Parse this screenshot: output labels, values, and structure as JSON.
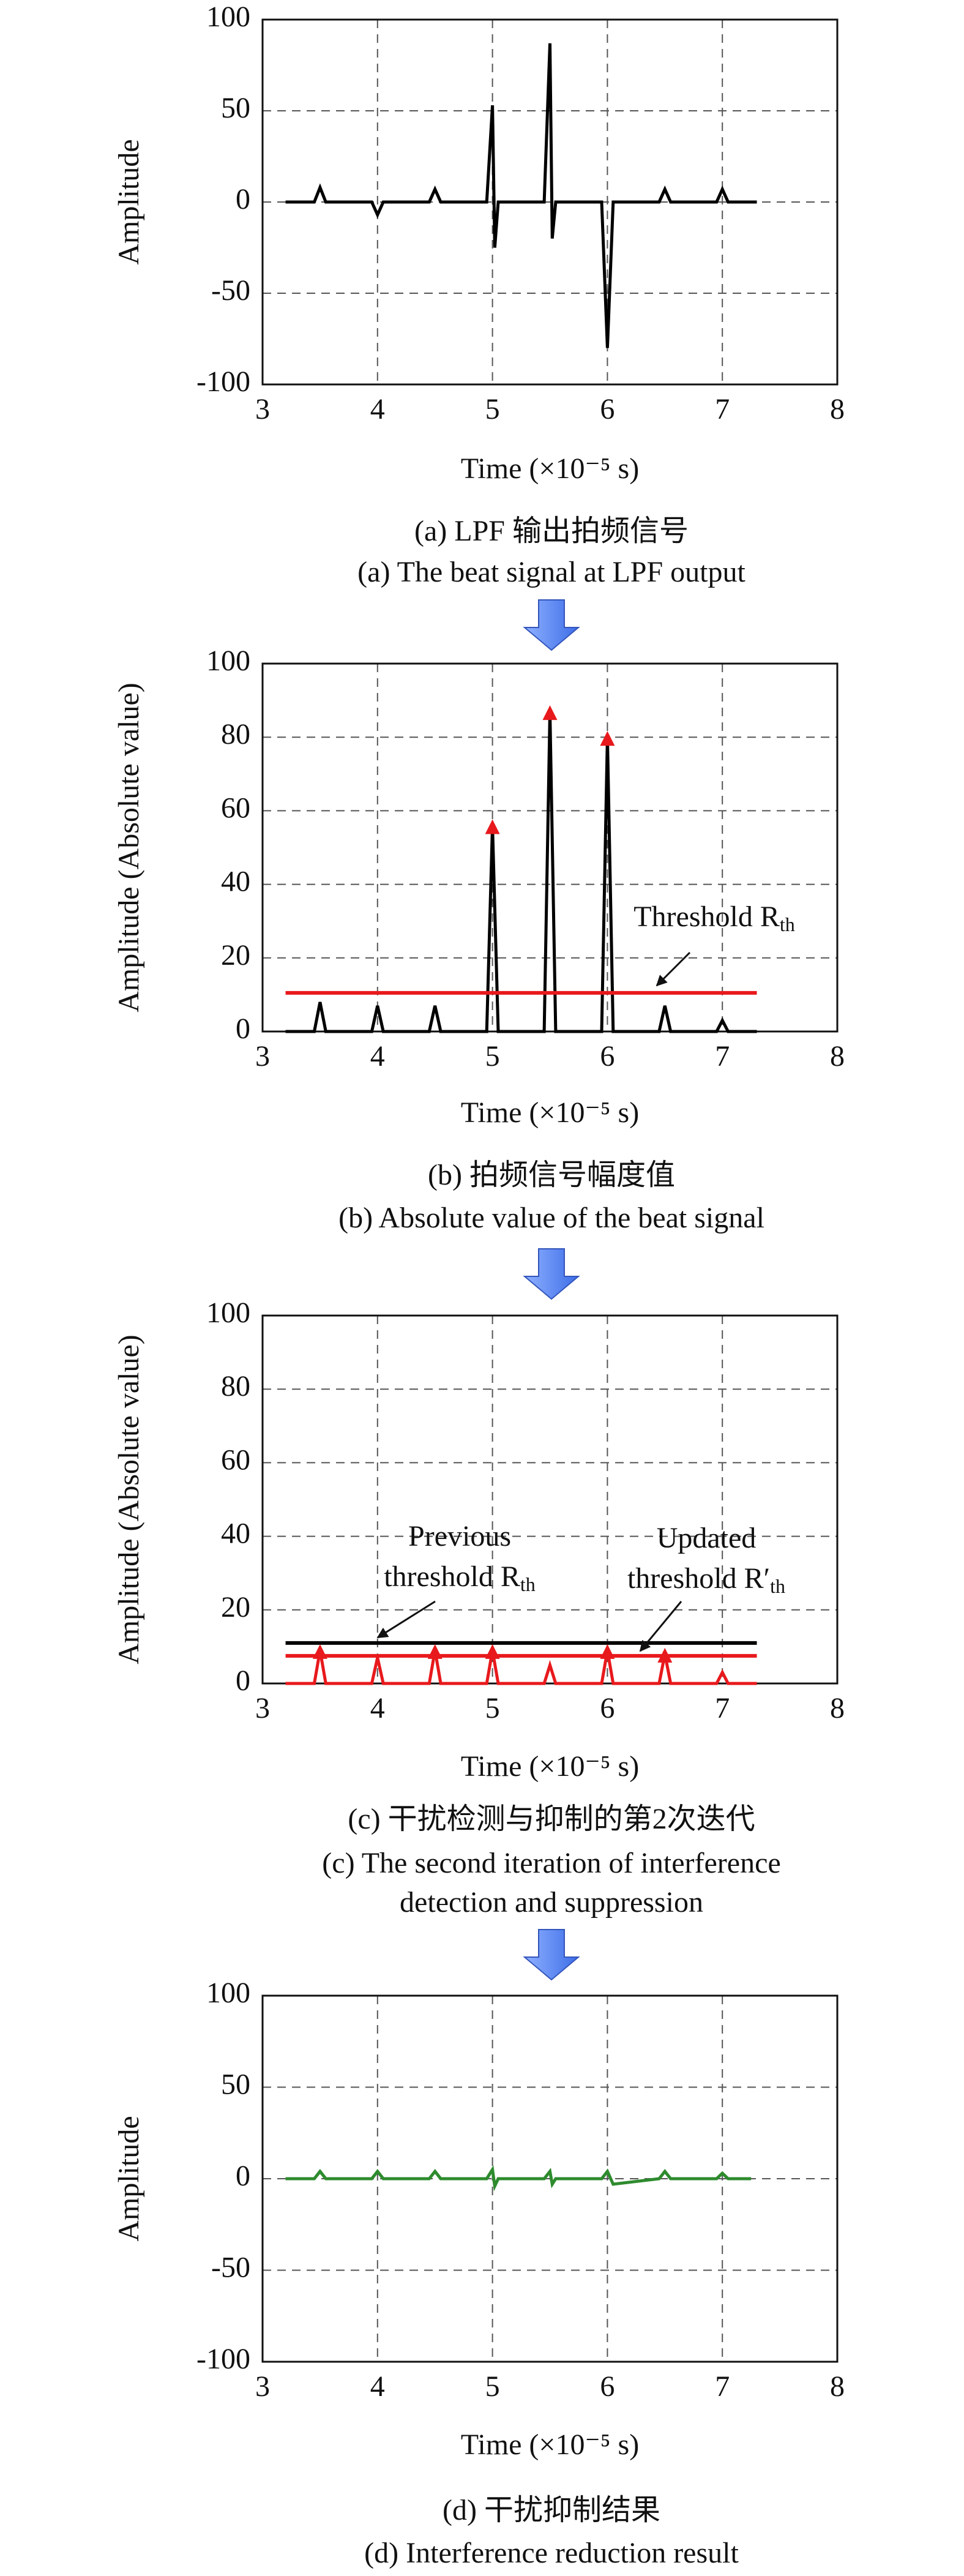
{
  "chart_data": [
    {
      "type": "line",
      "xlabel": "Time (×10⁻⁵ s)",
      "ylabel": "Amplitude",
      "xlim": [
        3,
        8
      ],
      "xticks": [
        3,
        4,
        5,
        6,
        7,
        8
      ],
      "ylim": [
        -100,
        100
      ],
      "yticks": [
        -100,
        -50,
        0,
        50,
        100
      ],
      "grid": true,
      "series": [
        {
          "color": "#000000",
          "style": "line",
          "x": [
            3.2,
            3.45,
            3.5,
            3.55,
            3.95,
            4.0,
            4.05,
            4.45,
            4.5,
            4.55,
            4.95,
            5.0,
            5.02,
            5.05,
            5.45,
            5.5,
            5.52,
            5.55,
            5.95,
            6.0,
            6.05,
            6.45,
            6.5,
            6.55,
            6.95,
            7.0,
            7.05,
            7.3
          ],
          "values": [
            0,
            0,
            8,
            0,
            0,
            -7,
            0,
            0,
            7,
            0,
            0,
            53,
            -25,
            0,
            0,
            87,
            -20,
            0,
            0,
            -80,
            0,
            0,
            7,
            0,
            0,
            7,
            0,
            0
          ]
        }
      ],
      "annotations": [],
      "caption": [
        "(a) LPF 输出拍频信号",
        "(a) The beat signal at LPF output"
      ]
    },
    {
      "type": "line",
      "xlabel": "Time (×10⁻⁵ s)",
      "ylabel": "Amplitude (Absolute value)",
      "xlim": [
        3,
        8
      ],
      "xticks": [
        3,
        4,
        5,
        6,
        7,
        8
      ],
      "ylim": [
        0,
        100
      ],
      "yticks": [
        0,
        20,
        40,
        60,
        80,
        100
      ],
      "grid": true,
      "series": [
        {
          "color": "#000000",
          "style": "line",
          "x": [
            3.2,
            3.45,
            3.5,
            3.55,
            3.95,
            4.0,
            4.05,
            4.45,
            4.5,
            4.55,
            4.95,
            5.0,
            5.05,
            5.45,
            5.5,
            5.55,
            5.95,
            6.0,
            6.05,
            6.45,
            6.5,
            6.55,
            6.95,
            7.0,
            7.05,
            7.3
          ],
          "values": [
            0,
            0,
            8,
            0,
            0,
            7,
            0,
            0,
            7,
            0,
            0,
            56,
            0,
            0,
            87,
            0,
            0,
            80,
            0,
            0,
            7,
            0,
            0,
            3,
            0,
            0
          ]
        },
        {
          "color": "#e8191c",
          "style": "line",
          "x": [
            3.2,
            7.3
          ],
          "values": [
            10.5,
            10.5
          ]
        },
        {
          "color": "#e8191c",
          "style": "markers",
          "x": [
            5.0,
            5.5,
            6.0
          ],
          "values": [
            56,
            87,
            80
          ]
        }
      ],
      "annotations": [
        {
          "lines": [
            {
              "text": "Threshold R",
              "sub": "th"
            }
          ]
        }
      ],
      "caption": [
        "(b) 拍频信号幅度值",
        "(b) Absolute value of the beat signal"
      ]
    },
    {
      "type": "line",
      "xlabel": "Time (×10⁻⁵ s)",
      "ylabel": "Amplitude (Absolute value)",
      "xlim": [
        3,
        8
      ],
      "xticks": [
        3,
        4,
        5,
        6,
        7,
        8
      ],
      "ylim": [
        0,
        100
      ],
      "yticks": [
        0,
        20,
        40,
        60,
        80,
        100
      ],
      "grid": true,
      "series": [
        {
          "color": "#000000",
          "style": "line",
          "x": [
            3.2,
            7.3
          ],
          "values": [
            11,
            11
          ]
        },
        {
          "color": "#e8191c",
          "style": "line",
          "x": [
            3.2,
            7.3
          ],
          "values": [
            7.5,
            7.5
          ]
        },
        {
          "color": "#e8191c",
          "style": "line",
          "x": [
            3.2,
            3.45,
            3.5,
            3.55,
            3.95,
            4.0,
            4.05,
            4.45,
            4.5,
            4.55,
            4.95,
            5.0,
            5.05,
            5.45,
            5.5,
            5.55,
            5.95,
            6.0,
            6.05,
            6.45,
            6.5,
            6.55,
            6.95,
            7.0,
            7.05,
            7.3
          ],
          "values": [
            0,
            0,
            9,
            0,
            0,
            7,
            0,
            0,
            9,
            0,
            0,
            9,
            0,
            0,
            5,
            0,
            0,
            9,
            0,
            0,
            8,
            0,
            0,
            3,
            0,
            0
          ]
        },
        {
          "color": "#e8191c",
          "style": "markers",
          "x": [
            3.5,
            4.5,
            5.0,
            6.0,
            6.5
          ],
          "values": [
            9,
            9,
            9,
            9,
            8
          ]
        }
      ],
      "annotations": [
        {
          "lines": [
            {
              "text": "Previous"
            },
            {
              "text": "threshold R",
              "sub": "th"
            }
          ]
        },
        {
          "lines": [
            {
              "text": "Updated"
            },
            {
              "text": "threshold R′",
              "sub": "th"
            }
          ]
        }
      ],
      "caption": [
        "(c) 干扰检测与抑制的第2次迭代",
        "(c) The second iteration of interference",
        "detection and suppression"
      ]
    },
    {
      "type": "line",
      "xlabel": "Time (×10⁻⁵ s)",
      "ylabel": "Amplitude",
      "xlim": [
        3,
        8
      ],
      "xticks": [
        3,
        4,
        5,
        6,
        7,
        8
      ],
      "ylim": [
        -100,
        100
      ],
      "yticks": [
        -100,
        -50,
        0,
        50,
        100
      ],
      "grid": true,
      "series": [
        {
          "color": "#2e8b2e",
          "style": "line",
          "x": [
            3.2,
            3.45,
            3.5,
            3.55,
            3.95,
            4.0,
            4.05,
            4.45,
            4.5,
            4.55,
            4.95,
            5.0,
            5.02,
            5.05,
            5.45,
            5.5,
            5.52,
            5.55,
            5.95,
            6.0,
            6.05,
            6.45,
            6.5,
            6.55,
            6.95,
            7.0,
            7.05,
            7.25
          ],
          "values": [
            0,
            0,
            4,
            0,
            0,
            4,
            0,
            0,
            4,
            0,
            0,
            5,
            -4,
            0,
            0,
            4,
            -3,
            0,
            0,
            4,
            -3,
            0,
            4,
            0,
            0,
            3,
            0,
            0
          ]
        }
      ],
      "annotations": [],
      "caption": [
        "(d) 干扰抑制结果",
        "(d) Interference reduction result"
      ]
    }
  ]
}
